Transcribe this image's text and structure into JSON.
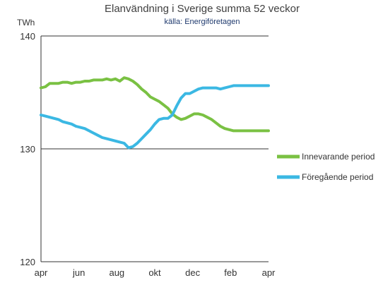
{
  "colors": {
    "current": "#7AC143",
    "previous": "#3BB8E3",
    "subtitle": "#1F3A6E",
    "axis": "#333333"
  },
  "chart_data": {
    "type": "line",
    "title": "Elanvändning i Sverige summa 52 veckor",
    "subtitle": "källa: Energiföretagen",
    "ylabel": "TWh",
    "ylim": [
      120,
      140
    ],
    "yticks": [
      120,
      130,
      140
    ],
    "xticks": [
      "apr",
      "jun",
      "aug",
      "okt",
      "dec",
      "feb",
      "apr"
    ],
    "grid": "horizontal",
    "legend_position": "right",
    "x_count": 53,
    "series": [
      {
        "name": "Innevarande period",
        "color_key": "current",
        "values": [
          135.4,
          135.5,
          135.8,
          135.8,
          135.8,
          135.9,
          135.9,
          135.8,
          135.9,
          135.9,
          136.0,
          136.0,
          136.1,
          136.1,
          136.1,
          136.2,
          136.1,
          136.2,
          136.0,
          136.3,
          136.2,
          136.0,
          135.7,
          135.3,
          135.0,
          134.6,
          134.4,
          134.2,
          133.9,
          133.6,
          133.1,
          132.8,
          132.6,
          132.7,
          132.9,
          133.1,
          133.1,
          133.0,
          132.8,
          132.6,
          132.3,
          132.0,
          131.8,
          131.7,
          131.6,
          131.6,
          131.6,
          131.6,
          131.6,
          131.6,
          131.6,
          131.6,
          131.6
        ]
      },
      {
        "name": "Föregående period",
        "color_key": "previous",
        "values": [
          133.0,
          132.9,
          132.8,
          132.7,
          132.6,
          132.4,
          132.3,
          132.2,
          132.0,
          131.9,
          131.8,
          131.6,
          131.4,
          131.2,
          131.0,
          130.9,
          130.8,
          130.7,
          130.6,
          130.5,
          130.1,
          130.2,
          130.5,
          130.9,
          131.3,
          131.7,
          132.2,
          132.6,
          132.7,
          132.7,
          133.0,
          133.8,
          134.5,
          134.9,
          134.9,
          135.1,
          135.3,
          135.4,
          135.4,
          135.4,
          135.4,
          135.3,
          135.4,
          135.5,
          135.6,
          135.6,
          135.6,
          135.6,
          135.6,
          135.6,
          135.6,
          135.6,
          135.6
        ]
      }
    ]
  }
}
